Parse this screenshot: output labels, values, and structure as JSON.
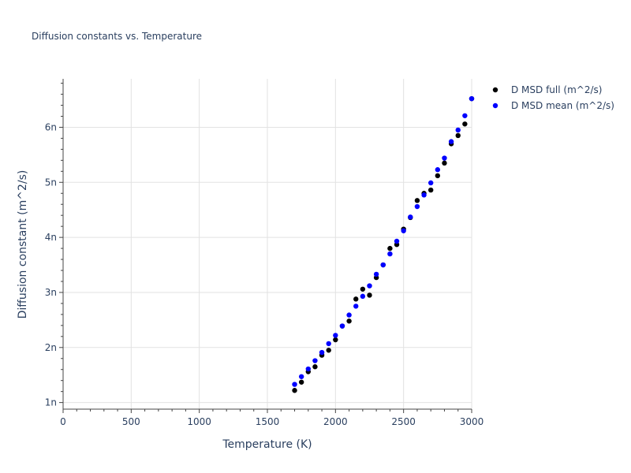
{
  "chart_data": {
    "type": "scatter",
    "title": "Diffusion constants vs. Temperature",
    "xlabel": "Temperature (K)",
    "ylabel": "Diffusion constant (m^2/s)",
    "xlim": [
      0,
      3000
    ],
    "ylim": [
      0.88,
      6.88
    ],
    "grid": true,
    "legend_position": "top-right",
    "x_ticks": [
      {
        "value": 0,
        "label": "0"
      },
      {
        "value": 500,
        "label": "500"
      },
      {
        "value": 1000,
        "label": "1000"
      },
      {
        "value": 1500,
        "label": "1500"
      },
      {
        "value": 2000,
        "label": "2000"
      },
      {
        "value": 2500,
        "label": "2500"
      },
      {
        "value": 3000,
        "label": "3000"
      }
    ],
    "y_ticks": [
      {
        "value": 1,
        "label": "1n"
      },
      {
        "value": 2,
        "label": "2n"
      },
      {
        "value": 3,
        "label": "3n"
      },
      {
        "value": 4,
        "label": "4n"
      },
      {
        "value": 5,
        "label": "5n"
      },
      {
        "value": 6,
        "label": "6n"
      }
    ],
    "x": [
      1700,
      1750,
      1800,
      1850,
      1900,
      1950,
      2000,
      2050,
      2100,
      2150,
      2200,
      2250,
      2300,
      2350,
      2400,
      2450,
      2500,
      2550,
      2600,
      2650,
      2700,
      2750,
      2800,
      2850,
      2900,
      2950,
      3000
    ],
    "series": [
      {
        "name": "D MSD full (m^2/s)",
        "color": "#000000",
        "values": [
          1.22,
          1.37,
          1.56,
          1.65,
          1.86,
          1.95,
          2.14,
          2.39,
          2.48,
          2.88,
          3.06,
          2.95,
          3.27,
          3.5,
          3.8,
          3.87,
          4.15,
          4.36,
          4.67,
          4.8,
          4.86,
          5.12,
          5.35,
          5.7,
          5.85,
          6.06,
          6.52
        ]
      },
      {
        "name": "D MSD mean (m^2/s)",
        "color": "#0000ff",
        "values": [
          1.33,
          1.47,
          1.61,
          1.76,
          1.91,
          2.07,
          2.22,
          2.39,
          2.59,
          2.75,
          2.93,
          3.12,
          3.33,
          3.5,
          3.7,
          3.93,
          4.12,
          4.37,
          4.56,
          4.77,
          4.99,
          5.23,
          5.44,
          5.74,
          5.95,
          6.21,
          6.52
        ]
      }
    ]
  }
}
